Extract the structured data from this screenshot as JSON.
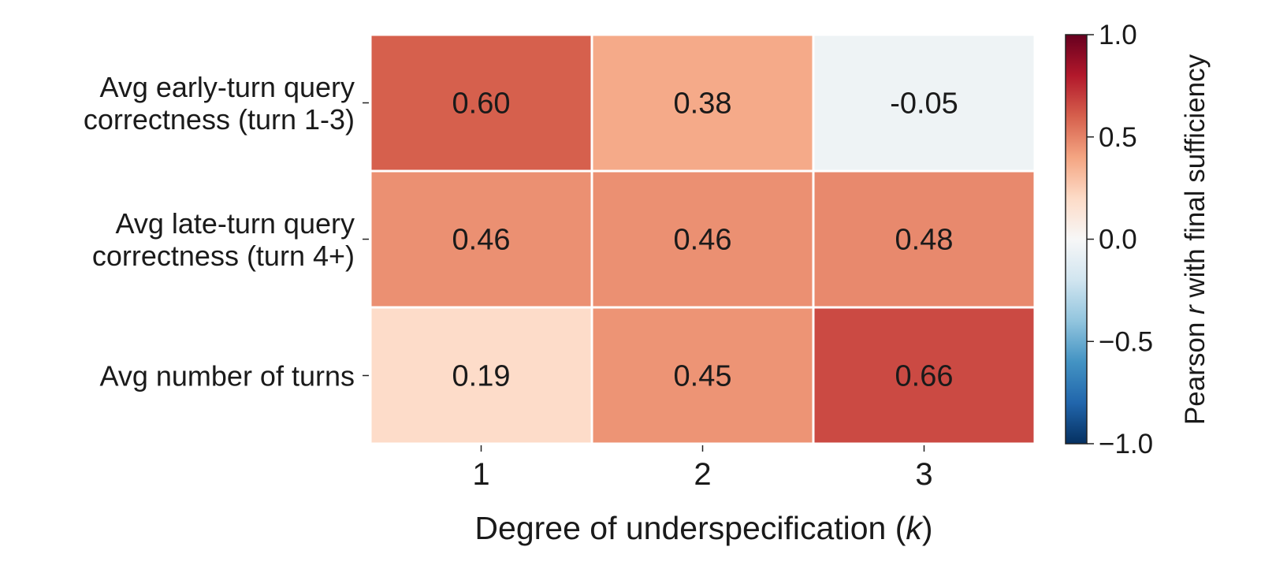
{
  "chart_data": {
    "type": "heatmap",
    "rows": [
      [
        "Avg early-turn query",
        "correctness (turn 1-3)"
      ],
      [
        "Avg late-turn query",
        "correctness (turn 4+)"
      ],
      [
        "Avg number of turns"
      ]
    ],
    "columns": [
      "1",
      "2",
      "3"
    ],
    "values": [
      [
        0.6,
        0.38,
        -0.05
      ],
      [
        0.46,
        0.46,
        0.48
      ],
      [
        0.19,
        0.45,
        0.66
      ]
    ],
    "cell_labels": [
      [
        "0.60",
        "0.38",
        "-0.05"
      ],
      [
        "0.46",
        "0.46",
        "0.48"
      ],
      [
        "0.19",
        "0.45",
        "0.66"
      ]
    ],
    "xlabel": {
      "prefix": "Degree of underspecification (",
      "var": "k",
      "suffix": ")"
    },
    "colorbar": {
      "label": {
        "prefix": "Pearson ",
        "var": "r",
        "suffix": " with final sufficiency"
      },
      "range": [
        -1.0,
        1.0
      ],
      "ticks": [
        1.0,
        0.5,
        0.0,
        -0.5,
        -1.0
      ],
      "tick_labels": [
        "1.0",
        "0.5",
        "0.0",
        "−0.5",
        "−1.0"
      ],
      "colormap": "RdBu_r"
    }
  }
}
